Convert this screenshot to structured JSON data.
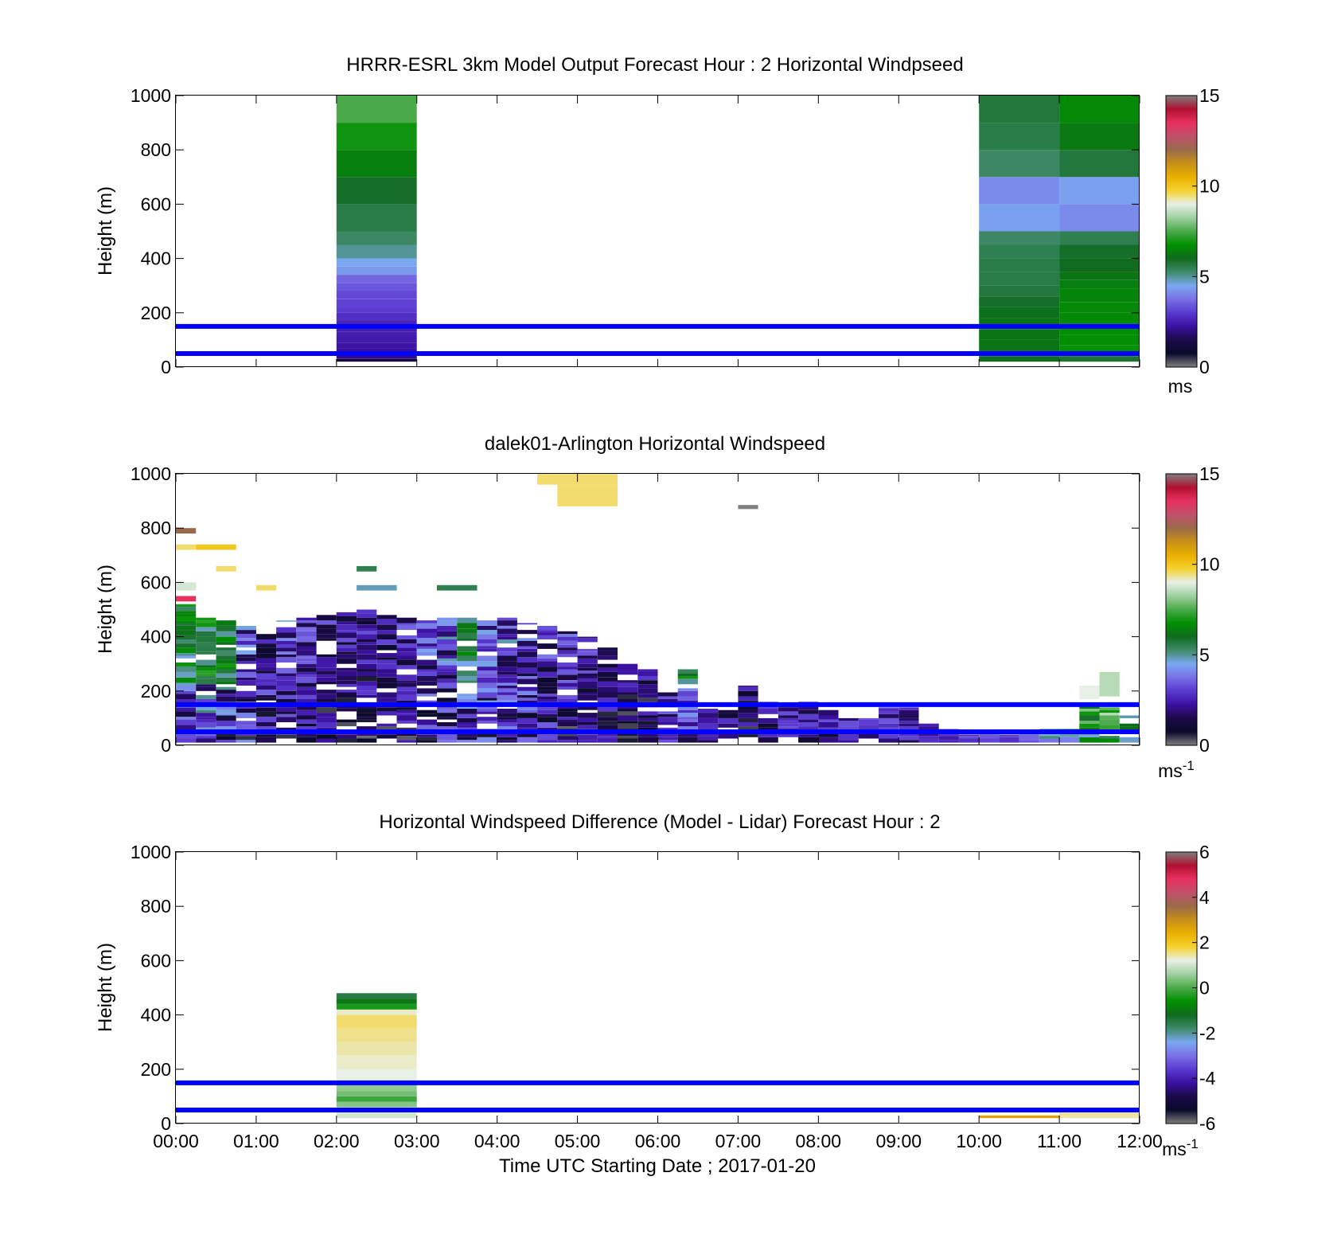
{
  "colors": {
    "reference_line": "#0000ff",
    "colormap": [
      "#7f7f7f",
      "#0a0a2a",
      "#1b0a4a",
      "#3a10a0",
      "#5a3ad0",
      "#7a70e6",
      "#7aa8f0",
      "#3f8a6a",
      "#0f6b1e",
      "#009000",
      "#4aaa4a",
      "#9fd09f",
      "#e8f0e8",
      "#f5d230",
      "#eab000",
      "#c89018",
      "#9a6a48",
      "#c0506a",
      "#e83060",
      "#b01030",
      "#7f7f7f"
    ]
  },
  "chart_data": [
    {
      "type": "heatmap",
      "title": "HRRR-ESRL 3km Model Output   Forecast Hour : 2 Horizontal Windpseed",
      "xlabel": "",
      "ylabel": "Height (m)",
      "xlim": [
        0,
        12
      ],
      "ylim": [
        0,
        1000
      ],
      "xtick_labels": [],
      "yticks": [
        0,
        200,
        400,
        600,
        800,
        1000
      ],
      "colorbar": {
        "min": 0,
        "max": 15,
        "ticks": [
          0,
          5,
          10,
          15
        ],
        "unit_base": "ms",
        "unit_exp": ""
      },
      "reference_lines_m": [
        50,
        150
      ],
      "columns": [
        {
          "t0": 2,
          "t1": 3,
          "cells": [
            [
              20,
              30,
              1.2
            ],
            [
              30,
              50,
              2.0
            ],
            [
              50,
              70,
              2.2
            ],
            [
              70,
              90,
              2.3
            ],
            [
              90,
              110,
              2.4
            ],
            [
              110,
              130,
              2.5
            ],
            [
              130,
              150,
              2.5
            ],
            [
              150,
              170,
              2.6
            ],
            [
              170,
              200,
              2.8
            ],
            [
              200,
              220,
              3.0
            ],
            [
              220,
              250,
              3.1
            ],
            [
              250,
              280,
              3.2
            ],
            [
              280,
              310,
              3.4
            ],
            [
              310,
              340,
              3.6
            ],
            [
              340,
              370,
              4.3
            ],
            [
              370,
              400,
              4.5
            ],
            [
              400,
              450,
              5.0
            ],
            [
              450,
              500,
              5.3
            ],
            [
              500,
              600,
              5.6
            ],
            [
              600,
              700,
              5.9
            ],
            [
              700,
              800,
              6.4
            ],
            [
              800,
              900,
              6.9
            ],
            [
              900,
              1000,
              7.5
            ]
          ]
        },
        {
          "t0": 10,
          "t1": 11,
          "cells": [
            [
              20,
              40,
              6.0
            ],
            [
              40,
              60,
              5.8
            ],
            [
              60,
              100,
              6.2
            ],
            [
              100,
              140,
              6.2
            ],
            [
              140,
              180,
              6.2
            ],
            [
              180,
              220,
              6.1
            ],
            [
              220,
              260,
              5.9
            ],
            [
              260,
              300,
              5.7
            ],
            [
              300,
              350,
              5.6
            ],
            [
              350,
              400,
              5.6
            ],
            [
              400,
              450,
              5.5
            ],
            [
              450,
              500,
              5.3
            ],
            [
              500,
              600,
              4.4
            ],
            [
              600,
              700,
              4.1
            ],
            [
              700,
              800,
              5.3
            ],
            [
              800,
              900,
              5.6
            ],
            [
              900,
              1000,
              5.7
            ]
          ]
        },
        {
          "t0": 11,
          "t1": 12,
          "cells": [
            [
              20,
              40,
              5.8
            ],
            [
              40,
              60,
              6.4
            ],
            [
              60,
              80,
              6.8
            ],
            [
              80,
              120,
              6.7
            ],
            [
              120,
              160,
              6.7
            ],
            [
              160,
              200,
              6.6
            ],
            [
              200,
              240,
              6.6
            ],
            [
              240,
              290,
              6.5
            ],
            [
              290,
              320,
              6.4
            ],
            [
              320,
              350,
              6.2
            ],
            [
              350,
              400,
              6.0
            ],
            [
              400,
              450,
              5.9
            ],
            [
              450,
              500,
              5.5
            ],
            [
              500,
              600,
              4.1
            ],
            [
              600,
              700,
              4.4
            ],
            [
              700,
              800,
              5.7
            ],
            [
              800,
              900,
              6.3
            ],
            [
              900,
              1000,
              6.6
            ]
          ]
        }
      ]
    },
    {
      "type": "heatmap",
      "title": "dalek01-Arlington  Horizontal Windspeed",
      "xlabel": "",
      "ylabel": "Height (m)",
      "xlim": [
        0,
        12
      ],
      "ylim": [
        0,
        1000
      ],
      "xtick_labels": [],
      "yticks": [
        0,
        200,
        400,
        600,
        800,
        1000
      ],
      "colorbar": {
        "min": 0,
        "max": 15,
        "ticks": [
          0,
          5,
          10,
          15
        ],
        "unit_base": "ms",
        "unit_exp": "-1"
      },
      "reference_lines_m": [
        50,
        150
      ],
      "time_step_h": 0.25,
      "columns": [
        {
          "t": 0.0,
          "top": 520,
          "base": 2.5,
          "var": 2.0
        },
        {
          "t": 0.25,
          "top": 470,
          "base": 2.7,
          "var": 2.2
        },
        {
          "t": 0.5,
          "top": 460,
          "base": 2.6,
          "var": 2.2
        },
        {
          "t": 0.75,
          "top": 440,
          "base": 2.2,
          "var": 2.0
        },
        {
          "t": 1.0,
          "top": 430,
          "base": 1.6,
          "var": 1.6
        },
        {
          "t": 1.25,
          "top": 460,
          "base": 1.8,
          "var": 1.6
        },
        {
          "t": 1.5,
          "top": 470,
          "base": 1.7,
          "var": 1.4
        },
        {
          "t": 1.75,
          "top": 480,
          "base": 1.5,
          "var": 1.4
        },
        {
          "t": 2.0,
          "top": 490,
          "base": 1.4,
          "var": 1.3
        },
        {
          "t": 2.25,
          "top": 500,
          "base": 1.3,
          "var": 1.3
        },
        {
          "t": 2.5,
          "top": 480,
          "base": 1.4,
          "var": 1.4
        },
        {
          "t": 2.75,
          "top": 470,
          "base": 1.5,
          "var": 1.4
        },
        {
          "t": 3.0,
          "top": 460,
          "base": 1.8,
          "var": 1.8
        },
        {
          "t": 3.25,
          "top": 470,
          "base": 2.2,
          "var": 1.8
        },
        {
          "t": 3.5,
          "top": 470,
          "base": 2.4,
          "var": 1.8
        },
        {
          "t": 3.75,
          "top": 460,
          "base": 2.3,
          "var": 1.8
        },
        {
          "t": 4.0,
          "top": 470,
          "base": 2.2,
          "var": 1.8
        },
        {
          "t": 4.25,
          "top": 450,
          "base": 2.0,
          "var": 1.8
        },
        {
          "t": 4.5,
          "top": 440,
          "base": 1.8,
          "var": 1.6
        },
        {
          "t": 4.75,
          "top": 420,
          "base": 1.6,
          "var": 1.6
        },
        {
          "t": 5.0,
          "top": 400,
          "base": 1.4,
          "var": 1.4
        },
        {
          "t": 5.25,
          "top": 360,
          "base": 1.4,
          "var": 1.4
        },
        {
          "t": 5.5,
          "top": 300,
          "base": 1.2,
          "var": 1.2
        },
        {
          "t": 5.75,
          "top": 280,
          "base": 1.3,
          "var": 1.2
        },
        {
          "t": 6.0,
          "top": 200,
          "base": 2.0,
          "var": 1.4
        },
        {
          "t": 6.25,
          "top": 280,
          "base": 2.6,
          "var": 1.4
        },
        {
          "t": 6.5,
          "top": 150,
          "base": 2.4,
          "var": 1.2
        },
        {
          "t": 6.75,
          "top": 130,
          "base": 2.0,
          "var": 1.2
        },
        {
          "t": 7.0,
          "top": 220,
          "base": 1.4,
          "var": 1.2
        },
        {
          "t": 7.25,
          "top": 160,
          "base": 1.8,
          "var": 1.2
        },
        {
          "t": 7.5,
          "top": 150,
          "base": 2.2,
          "var": 1.0
        },
        {
          "t": 7.75,
          "top": 160,
          "base": 2.0,
          "var": 1.2
        },
        {
          "t": 8.0,
          "top": 130,
          "base": 2.0,
          "var": 1.2
        },
        {
          "t": 8.25,
          "top": 100,
          "base": 2.2,
          "var": 1.0
        },
        {
          "t": 8.5,
          "top": 100,
          "base": 2.2,
          "var": 1.0
        },
        {
          "t": 8.75,
          "top": 140,
          "base": 2.3,
          "var": 1.0
        },
        {
          "t": 9.0,
          "top": 140,
          "base": 2.2,
          "var": 1.0
        },
        {
          "t": 9.25,
          "top": 80,
          "base": 2.2,
          "var": 0.8
        },
        {
          "t": 9.5,
          "top": 60,
          "base": 2.6,
          "var": 0.8
        },
        {
          "t": 9.75,
          "top": 40,
          "base": 2.8,
          "var": 0.6
        },
        {
          "t": 10.0,
          "top": 50,
          "base": 3.0,
          "var": 0.6
        },
        {
          "t": 10.25,
          "top": 40,
          "base": 3.0,
          "var": 0.6
        },
        {
          "t": 10.5,
          "top": 50,
          "base": 3.2,
          "var": 0.8
        },
        {
          "t": 10.75,
          "top": 60,
          "base": 4.4,
          "var": 1.0
        },
        {
          "t": 11.0,
          "top": 60,
          "base": 4.8,
          "var": 1.2
        },
        {
          "t": 11.25,
          "top": 150,
          "base": 6.0,
          "var": 2.0
        },
        {
          "t": 11.5,
          "top": 140,
          "base": 6.5,
          "var": 2.0
        },
        {
          "t": 11.75,
          "top": 110,
          "base": 5.0,
          "var": 1.0
        }
      ],
      "extra_blocks": [
        {
          "t0": 0.0,
          "t1": 0.25,
          "h0": 780,
          "h1": 800,
          "v": 12.0
        },
        {
          "t0": 0.0,
          "t1": 0.25,
          "h0": 720,
          "h1": 740,
          "v": 9.5
        },
        {
          "t0": 0.25,
          "t1": 0.75,
          "h0": 720,
          "h1": 740,
          "v": 10.0
        },
        {
          "t0": 0.0,
          "t1": 0.25,
          "h0": 570,
          "h1": 600,
          "v": 8.8
        },
        {
          "t0": 0.0,
          "t1": 0.25,
          "h0": 530,
          "h1": 550,
          "v": 13.5
        },
        {
          "t0": 0.5,
          "t1": 0.75,
          "h0": 640,
          "h1": 660,
          "v": 9.5
        },
        {
          "t0": 1.0,
          "t1": 1.25,
          "h0": 570,
          "h1": 590,
          "v": 9.5
        },
        {
          "t0": 2.25,
          "t1": 2.5,
          "h0": 640,
          "h1": 660,
          "v": 5.5
        },
        {
          "t0": 2.25,
          "t1": 2.75,
          "h0": 570,
          "h1": 590,
          "v": 4.8
        },
        {
          "t0": 3.25,
          "t1": 3.75,
          "h0": 570,
          "h1": 590,
          "v": 5.5
        },
        {
          "t0": 4.5,
          "t1": 5.5,
          "h0": 960,
          "h1": 1000,
          "v": 9.5
        },
        {
          "t0": 4.75,
          "t1": 5.5,
          "h0": 880,
          "h1": 960,
          "v": 9.5
        },
        {
          "t0": 7.0,
          "t1": 7.25,
          "h0": 870,
          "h1": 885,
          "v": 15.0
        },
        {
          "t0": 11.25,
          "t1": 11.5,
          "h0": 170,
          "h1": 220,
          "v": 9.0
        },
        {
          "t0": 11.5,
          "t1": 11.75,
          "h0": 180,
          "h1": 270,
          "v": 8.5
        }
      ]
    },
    {
      "type": "heatmap",
      "title": "Horizontal Windspeed Difference (Model - Lidar) Forecast Hour : 2",
      "xlabel": "Time UTC  Starting Date ; 2017-01-20",
      "ylabel": "Height (m)",
      "xlim": [
        0,
        12
      ],
      "ylim": [
        0,
        1000
      ],
      "xtick_labels": [
        "00:00",
        "01:00",
        "02:00",
        "03:00",
        "04:00",
        "05:00",
        "06:00",
        "07:00",
        "08:00",
        "09:00",
        "10:00",
        "11:00",
        "12:00"
      ],
      "yticks": [
        0,
        200,
        400,
        600,
        800,
        1000
      ],
      "colorbar": {
        "min": -6,
        "max": 6,
        "ticks": [
          -6,
          -4,
          -2,
          0,
          2,
          4,
          6
        ],
        "unit_base": "ms",
        "unit_exp": "-1"
      },
      "reference_lines_m": [
        50,
        150
      ],
      "columns": [
        {
          "t0": 2,
          "t1": 3,
          "cells": [
            [
              20,
              40,
              1.0
            ],
            [
              40,
              60,
              1.3
            ],
            [
              60,
              80,
              0.4
            ],
            [
              80,
              100,
              -0.1
            ],
            [
              100,
              120,
              0.3
            ],
            [
              120,
              150,
              0.5
            ],
            [
              150,
              200,
              1.2
            ],
            [
              200,
              250,
              1.3
            ],
            [
              250,
              300,
              1.4
            ],
            [
              300,
              350,
              1.5
            ],
            [
              350,
              400,
              1.6
            ],
            [
              400,
              420,
              1.3
            ],
            [
              420,
              440,
              -0.4
            ],
            [
              440,
              460,
              -1.0
            ],
            [
              460,
              480,
              -1.5
            ]
          ]
        },
        {
          "t0": 10,
          "t1": 11,
          "cells": [
            [
              20,
              30,
              2.6
            ]
          ]
        },
        {
          "t0": 11,
          "t1": 12,
          "cells": [
            [
              20,
              30,
              1.4
            ],
            [
              30,
              40,
              1.5
            ]
          ]
        }
      ]
    }
  ]
}
